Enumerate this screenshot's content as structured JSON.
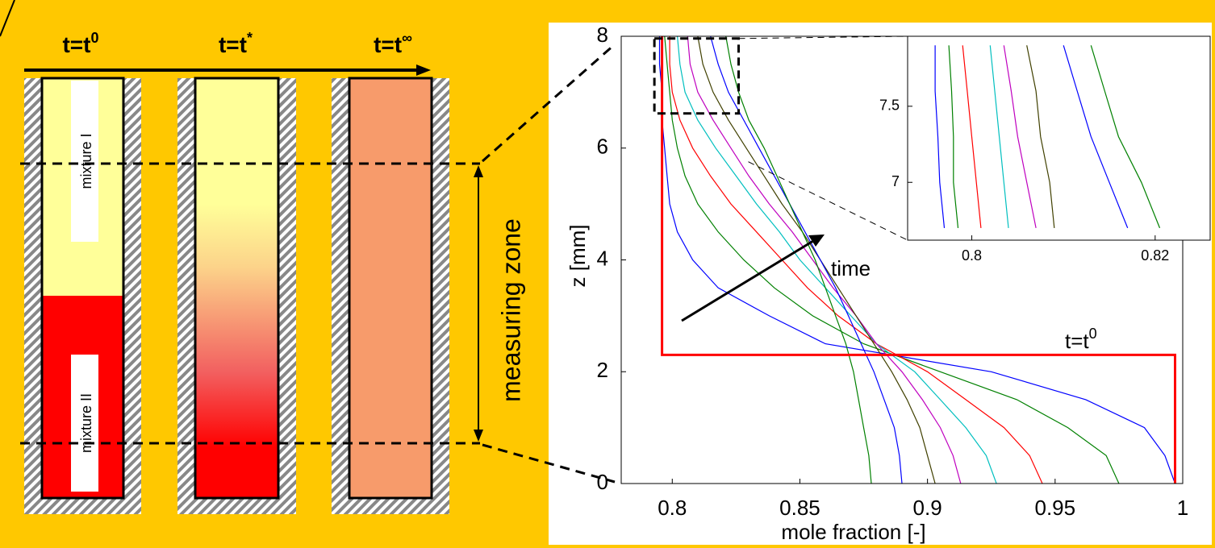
{
  "diagram": {
    "columns": [
      {
        "label": "t=t",
        "sup": "0"
      },
      {
        "label": "t=t",
        "sup": "*"
      },
      {
        "label": "t=t",
        "sup": "∞"
      }
    ],
    "mixture_top": "mixture I",
    "mixture_bottom": "mixture II",
    "zone": "measuring zone"
  },
  "chart_data": [
    {
      "type": "line",
      "xlabel": "mole fraction [-]",
      "ylabel": "z [mm]",
      "xlim": [
        0.78,
        1
      ],
      "ylim": [
        0,
        8
      ],
      "xticks": [
        0.8,
        0.85,
        0.9,
        0.95,
        1
      ],
      "yticks": [
        0,
        2,
        4,
        6,
        8
      ],
      "arrow_label": "time",
      "step_label": {
        "text": "t=t",
        "sup": "0"
      },
      "y": [
        0,
        0.5,
        1,
        1.5,
        2,
        2.5,
        3,
        3.5,
        4,
        4.5,
        5,
        5.5,
        6,
        6.5,
        7,
        7.5,
        8
      ],
      "series": [
        {
          "color": "#0000ff",
          "values": [
            0.997,
            0.993,
            0.985,
            0.962,
            0.925,
            0.86,
            0.838,
            0.818,
            0.808,
            0.802,
            0.799,
            0.798,
            0.797,
            0.796,
            0.796,
            0.795,
            0.795
          ]
        },
        {
          "color": "#008000",
          "values": [
            0.975,
            0.97,
            0.955,
            0.935,
            0.905,
            0.875,
            0.855,
            0.84,
            0.828,
            0.818,
            0.81,
            0.805,
            0.802,
            0.8,
            0.799,
            0.798,
            0.797
          ]
        },
        {
          "color": "#ff0000",
          "values": [
            0.945,
            0.94,
            0.93,
            0.915,
            0.9,
            0.88,
            0.865,
            0.853,
            0.843,
            0.833,
            0.823,
            0.815,
            0.808,
            0.803,
            0.8,
            0.799,
            0.799
          ]
        },
        {
          "color": "#00bfbf",
          "values": [
            0.927,
            0.923,
            0.915,
            0.905,
            0.895,
            0.88,
            0.87,
            0.86,
            0.85,
            0.842,
            0.833,
            0.825,
            0.817,
            0.81,
            0.805,
            0.803,
            0.802
          ]
        },
        {
          "color": "#bf00bf",
          "values": [
            0.913,
            0.91,
            0.905,
            0.898,
            0.89,
            0.88,
            0.872,
            0.863,
            0.855,
            0.847,
            0.838,
            0.83,
            0.823,
            0.816,
            0.81,
            0.807,
            0.806
          ]
        },
        {
          "color": "#404000",
          "values": [
            0.903,
            0.9,
            0.897,
            0.892,
            0.886,
            0.879,
            0.872,
            0.865,
            0.858,
            0.851,
            0.843,
            0.836,
            0.829,
            0.822,
            0.816,
            0.812,
            0.81
          ]
        },
        {
          "color": "#0000ff",
          "values": [
            0.89,
            0.889,
            0.887,
            0.883,
            0.879,
            0.874,
            0.869,
            0.864,
            0.858,
            0.852,
            0.846,
            0.84,
            0.834,
            0.828,
            0.822,
            0.818,
            0.815
          ]
        },
        {
          "color": "#008000",
          "values": [
            0.878,
            0.877,
            0.875,
            0.873,
            0.871,
            0.868,
            0.864,
            0.86,
            0.856,
            0.851,
            0.846,
            0.841,
            0.836,
            0.83,
            0.826,
            0.823,
            0.821
          ]
        },
        {
          "color": "#ff0000",
          "width": 3,
          "y": [
            0,
            2.3,
            2.3,
            8
          ],
          "values": [
            0.997,
            0.997,
            0.796,
            0.796
          ]
        }
      ]
    },
    {
      "type": "line",
      "xlim": [
        0.793,
        0.826
      ],
      "ylim": [
        6.62,
        7.96
      ],
      "xticks": [
        0.8,
        0.82
      ],
      "yticks": [
        7,
        7.5
      ],
      "y": [
        6.7,
        7.0,
        7.3,
        7.6,
        7.9
      ],
      "series": [
        {
          "color": "#0000ff",
          "values": [
            0.797,
            0.7965,
            0.7963,
            0.796,
            0.796
          ]
        },
        {
          "color": "#008000",
          "values": [
            0.7985,
            0.798,
            0.798,
            0.7978,
            0.7975
          ]
        },
        {
          "color": "#ff0000",
          "values": [
            0.801,
            0.8005,
            0.8,
            0.7995,
            0.799
          ]
        },
        {
          "color": "#00bfbf",
          "values": [
            0.804,
            0.8035,
            0.803,
            0.8025,
            0.802
          ]
        },
        {
          "color": "#bf00bf",
          "values": [
            0.807,
            0.806,
            0.805,
            0.8043,
            0.8035
          ]
        },
        {
          "color": "#404000",
          "values": [
            0.809,
            0.8085,
            0.8075,
            0.807,
            0.806
          ]
        },
        {
          "color": "#0000ff",
          "values": [
            0.817,
            0.815,
            0.813,
            0.8115,
            0.81
          ]
        },
        {
          "color": "#008000",
          "values": [
            0.8205,
            0.8185,
            0.816,
            0.8145,
            0.813
          ]
        }
      ]
    }
  ]
}
